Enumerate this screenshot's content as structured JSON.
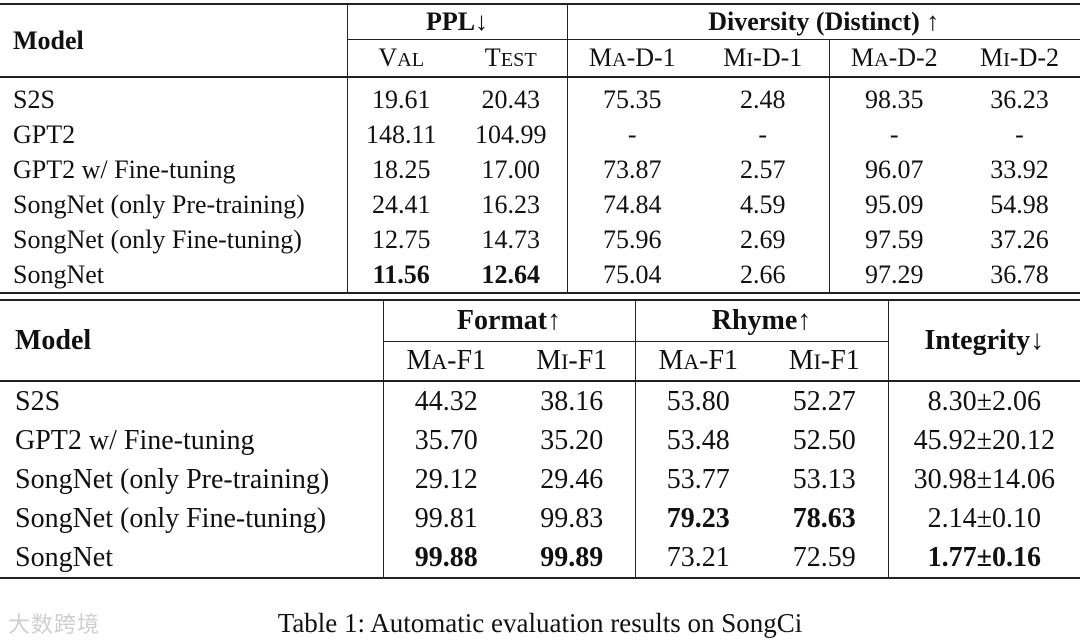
{
  "table1": {
    "model_header": "Model",
    "ppl_header": "PPL↓",
    "diversity_header": "Diversity (Distinct) ↑",
    "sub_headers": [
      {
        "big1": "V",
        "small1": "AL",
        "rest": ""
      },
      {
        "big1": "T",
        "small1": "EST",
        "rest": ""
      },
      {
        "big1": "M",
        "small1": "A",
        "rest": "-D-1"
      },
      {
        "big1": "M",
        "small1": "I",
        "rest": "-D-1"
      },
      {
        "big1": "M",
        "small1": "A",
        "rest": "-D-2"
      },
      {
        "big1": "M",
        "small1": "I",
        "rest": "-D-2"
      }
    ],
    "rows": [
      {
        "model": "S2S",
        "val": "19.61",
        "test": "20.43",
        "mad1": "75.35",
        "mid1": "2.48",
        "mad2": "98.35",
        "mid2": "36.23"
      },
      {
        "model": "GPT2",
        "val": "148.11",
        "test": "104.99",
        "mad1": "-",
        "mid1": "-",
        "mad2": "-",
        "mid2": "-"
      },
      {
        "model": "GPT2 w/ Fine-tuning",
        "val": "18.25",
        "test": "17.00",
        "mad1": "73.87",
        "mid1": "2.57",
        "mad2": "96.07",
        "mid2": "33.92"
      },
      {
        "model": "SongNet (only Pre-training)",
        "val": "24.41",
        "test": "16.23",
        "mad1": "74.84",
        "mid1": "4.59",
        "mad2": "95.09",
        "mid2": "54.98"
      },
      {
        "model": "SongNet (only Fine-tuning)",
        "val": "12.75",
        "test": "14.73",
        "mad1": "75.96",
        "mid1": "2.69",
        "mad2": "97.59",
        "mid2": "37.26"
      },
      {
        "model": "SongNet",
        "val": "11.56",
        "test": "12.64",
        "mad1": "75.04",
        "mid1": "2.66",
        "mad2": "97.29",
        "mid2": "36.78"
      }
    ]
  },
  "table2": {
    "model_header": "Model",
    "format_header": "Format↑",
    "rhyme_header": "Rhyme↑",
    "integrity_header": "Integrity↓",
    "sub_headers": [
      {
        "big1": "M",
        "small1": "A",
        "rest": "-F1"
      },
      {
        "big1": "M",
        "small1": "I",
        "rest": "-F1"
      },
      {
        "big1": "M",
        "small1": "A",
        "rest": "-F1"
      },
      {
        "big1": "M",
        "small1": "I",
        "rest": "-F1"
      }
    ],
    "rows": [
      {
        "model": "S2S",
        "fma": "44.32",
        "fmi": "38.16",
        "rma": "53.80",
        "rmi": "52.27",
        "integrity": "8.30±2.06"
      },
      {
        "model": "GPT2 w/ Fine-tuning",
        "fma": "35.70",
        "fmi": "35.20",
        "rma": "53.48",
        "rmi": "52.50",
        "integrity": "45.92±20.12"
      },
      {
        "model": "SongNet (only Pre-training)",
        "fma": "29.12",
        "fmi": "29.46",
        "rma": "53.77",
        "rmi": "53.13",
        "integrity": "30.98±14.06"
      },
      {
        "model": "SongNet (only Fine-tuning)",
        "fma": "99.81",
        "fmi": "99.83",
        "rma": "79.23",
        "rmi": "78.63",
        "integrity": "2.14±0.10"
      },
      {
        "model": "SongNet",
        "fma": "99.88",
        "fmi": "99.89",
        "rma": "73.21",
        "rmi": "72.59",
        "integrity": "1.77±0.16"
      }
    ]
  },
  "caption": "Table 1: Automatic evaluation results on SongCi",
  "watermark": "大数跨境"
}
